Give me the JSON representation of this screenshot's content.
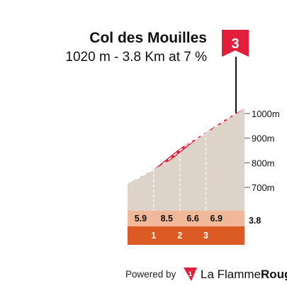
{
  "chart_data": {
    "type": "area",
    "title": "Col des Mouilles",
    "subtitle": "1020 m - 3.8 Km at 7 %",
    "category_flag": "3",
    "altitude_ticks": [
      "700m",
      "800m",
      "900m",
      "1000m"
    ],
    "altitude_tick_values": [
      700,
      800,
      900,
      1000
    ],
    "distance_km": 3.8,
    "distance_label": "3.8",
    "km_markers": [
      "1",
      "2",
      "3"
    ],
    "km_marker_values": [
      1,
      2,
      3
    ],
    "segment_gradients": [
      "5.9",
      "8.5",
      "6.6",
      "6.9"
    ],
    "segment_colors": [
      "#3a6fa8",
      "#e31e3a",
      "#e31e3a",
      "#e31e3a"
    ],
    "profile": {
      "x": [
        0,
        1,
        2,
        3,
        3.8
      ],
      "y": [
        754,
        813,
        898,
        964,
        1020
      ]
    },
    "ylim": [
      600,
      1030
    ]
  },
  "footer": {
    "powered_by": "Powered by",
    "brand_prefix": "La Flamme",
    "brand_suffix": "Rouge"
  }
}
